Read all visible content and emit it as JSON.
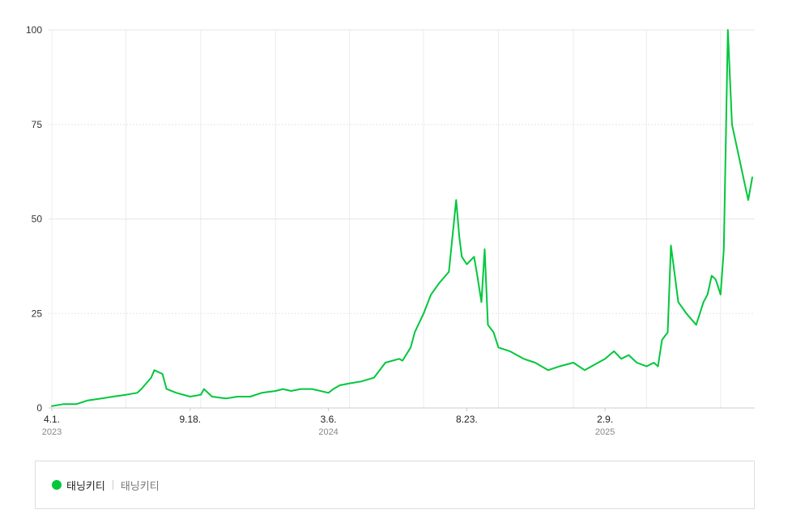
{
  "chart_data": {
    "type": "line",
    "ylim": [
      0,
      100
    ],
    "yticks": [
      "0",
      "25",
      "50",
      "75",
      "100"
    ],
    "xticks": [
      {
        "label": "4.1.",
        "year": "2023"
      },
      {
        "label": "9.18.",
        "year": ""
      },
      {
        "label": "3.6.",
        "year": "2024"
      },
      {
        "label": "8.23.",
        "year": ""
      },
      {
        "label": "2.9.",
        "year": "2025"
      }
    ],
    "grid": true,
    "legend_position": "bottom",
    "series": [
      {
        "name": "태닝키티",
        "color": "#00c73c",
        "x": [
          "2023-04-01",
          "2023-04-15",
          "2023-05-01",
          "2023-05-15",
          "2023-06-01",
          "2023-06-15",
          "2023-07-01",
          "2023-07-15",
          "2023-07-20",
          "2023-08-01",
          "2023-08-05",
          "2023-08-15",
          "2023-08-20",
          "2023-09-01",
          "2023-09-18",
          "2023-10-01",
          "2023-10-05",
          "2023-10-15",
          "2023-11-01",
          "2023-11-15",
          "2023-12-01",
          "2023-12-15",
          "2024-01-01",
          "2024-01-10",
          "2024-01-20",
          "2024-02-01",
          "2024-02-15",
          "2024-03-06",
          "2024-03-12",
          "2024-03-20",
          "2024-04-01",
          "2024-04-15",
          "2024-05-01",
          "2024-05-15",
          "2024-06-01",
          "2024-06-05",
          "2024-06-15",
          "2024-06-20",
          "2024-07-01",
          "2024-07-10",
          "2024-07-20",
          "2024-08-01",
          "2024-08-10",
          "2024-08-14",
          "2024-08-17",
          "2024-08-23",
          "2024-09-01",
          "2024-09-05",
          "2024-09-10",
          "2024-09-14",
          "2024-09-18",
          "2024-09-25",
          "2024-10-01",
          "2024-10-15",
          "2024-11-01",
          "2024-11-15",
          "2024-12-01",
          "2024-12-15",
          "2025-01-01",
          "2025-01-15",
          "2025-02-09",
          "2025-02-20",
          "2025-03-01",
          "2025-03-10",
          "2025-03-20",
          "2025-04-01",
          "2025-04-10",
          "2025-04-15",
          "2025-04-20",
          "2025-04-27",
          "2025-05-01",
          "2025-05-10",
          "2025-05-20",
          "2025-06-01",
          "2025-06-10",
          "2025-06-15",
          "2025-06-20",
          "2025-06-25",
          "2025-07-01",
          "2025-07-05",
          "2025-07-10",
          "2025-07-15",
          "2025-07-20",
          "2025-07-25",
          "2025-07-30",
          "2025-08-04",
          "2025-08-09"
        ],
        "values": [
          0.5,
          1,
          1,
          2,
          2.5,
          3,
          3.5,
          4,
          5,
          8,
          10,
          9,
          5,
          4,
          3,
          3.5,
          5,
          3,
          2.5,
          3,
          3,
          4,
          4.5,
          5,
          4.5,
          5,
          5,
          4,
          5,
          6,
          6.5,
          7,
          8,
          12,
          13,
          12.5,
          16,
          20,
          25,
          30,
          33,
          36,
          55,
          45,
          40,
          38,
          40,
          35,
          28,
          42,
          22,
          20,
          16,
          15,
          13,
          12,
          10,
          11,
          12,
          10,
          13,
          15,
          13,
          14,
          12,
          11,
          12,
          11,
          18,
          20,
          43,
          28,
          25,
          22,
          28,
          30,
          35,
          34,
          30,
          42,
          100,
          75,
          70,
          65,
          60,
          55,
          61
        ]
      }
    ]
  },
  "legend": {
    "name": "태닝키티",
    "sub": "태닝키티"
  }
}
